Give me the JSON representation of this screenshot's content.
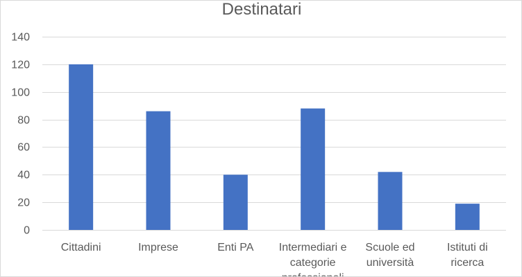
{
  "chart_data": {
    "type": "bar",
    "title": "Destinatari",
    "xlabel": "",
    "ylabel": "",
    "categories": [
      "Cittadini",
      "Imprese",
      "Enti PA",
      "Intermediari e categorie professionali",
      "Scuole ed università",
      "Istituti di ricerca"
    ],
    "category_lines": [
      [
        "Cittadini"
      ],
      [
        "Imprese"
      ],
      [
        "Enti PA"
      ],
      [
        "Intermediari e",
        "categorie",
        "professionali"
      ],
      [
        "Scuole ed",
        "università"
      ],
      [
        "Istituti di",
        "ricerca"
      ]
    ],
    "values": [
      120,
      86,
      40,
      88,
      42,
      19
    ],
    "ylim": [
      0,
      140
    ],
    "yticks": [
      0,
      20,
      40,
      60,
      80,
      100,
      120,
      140
    ],
    "grid": true,
    "legend": "none",
    "bar_color": "#4472c4"
  }
}
